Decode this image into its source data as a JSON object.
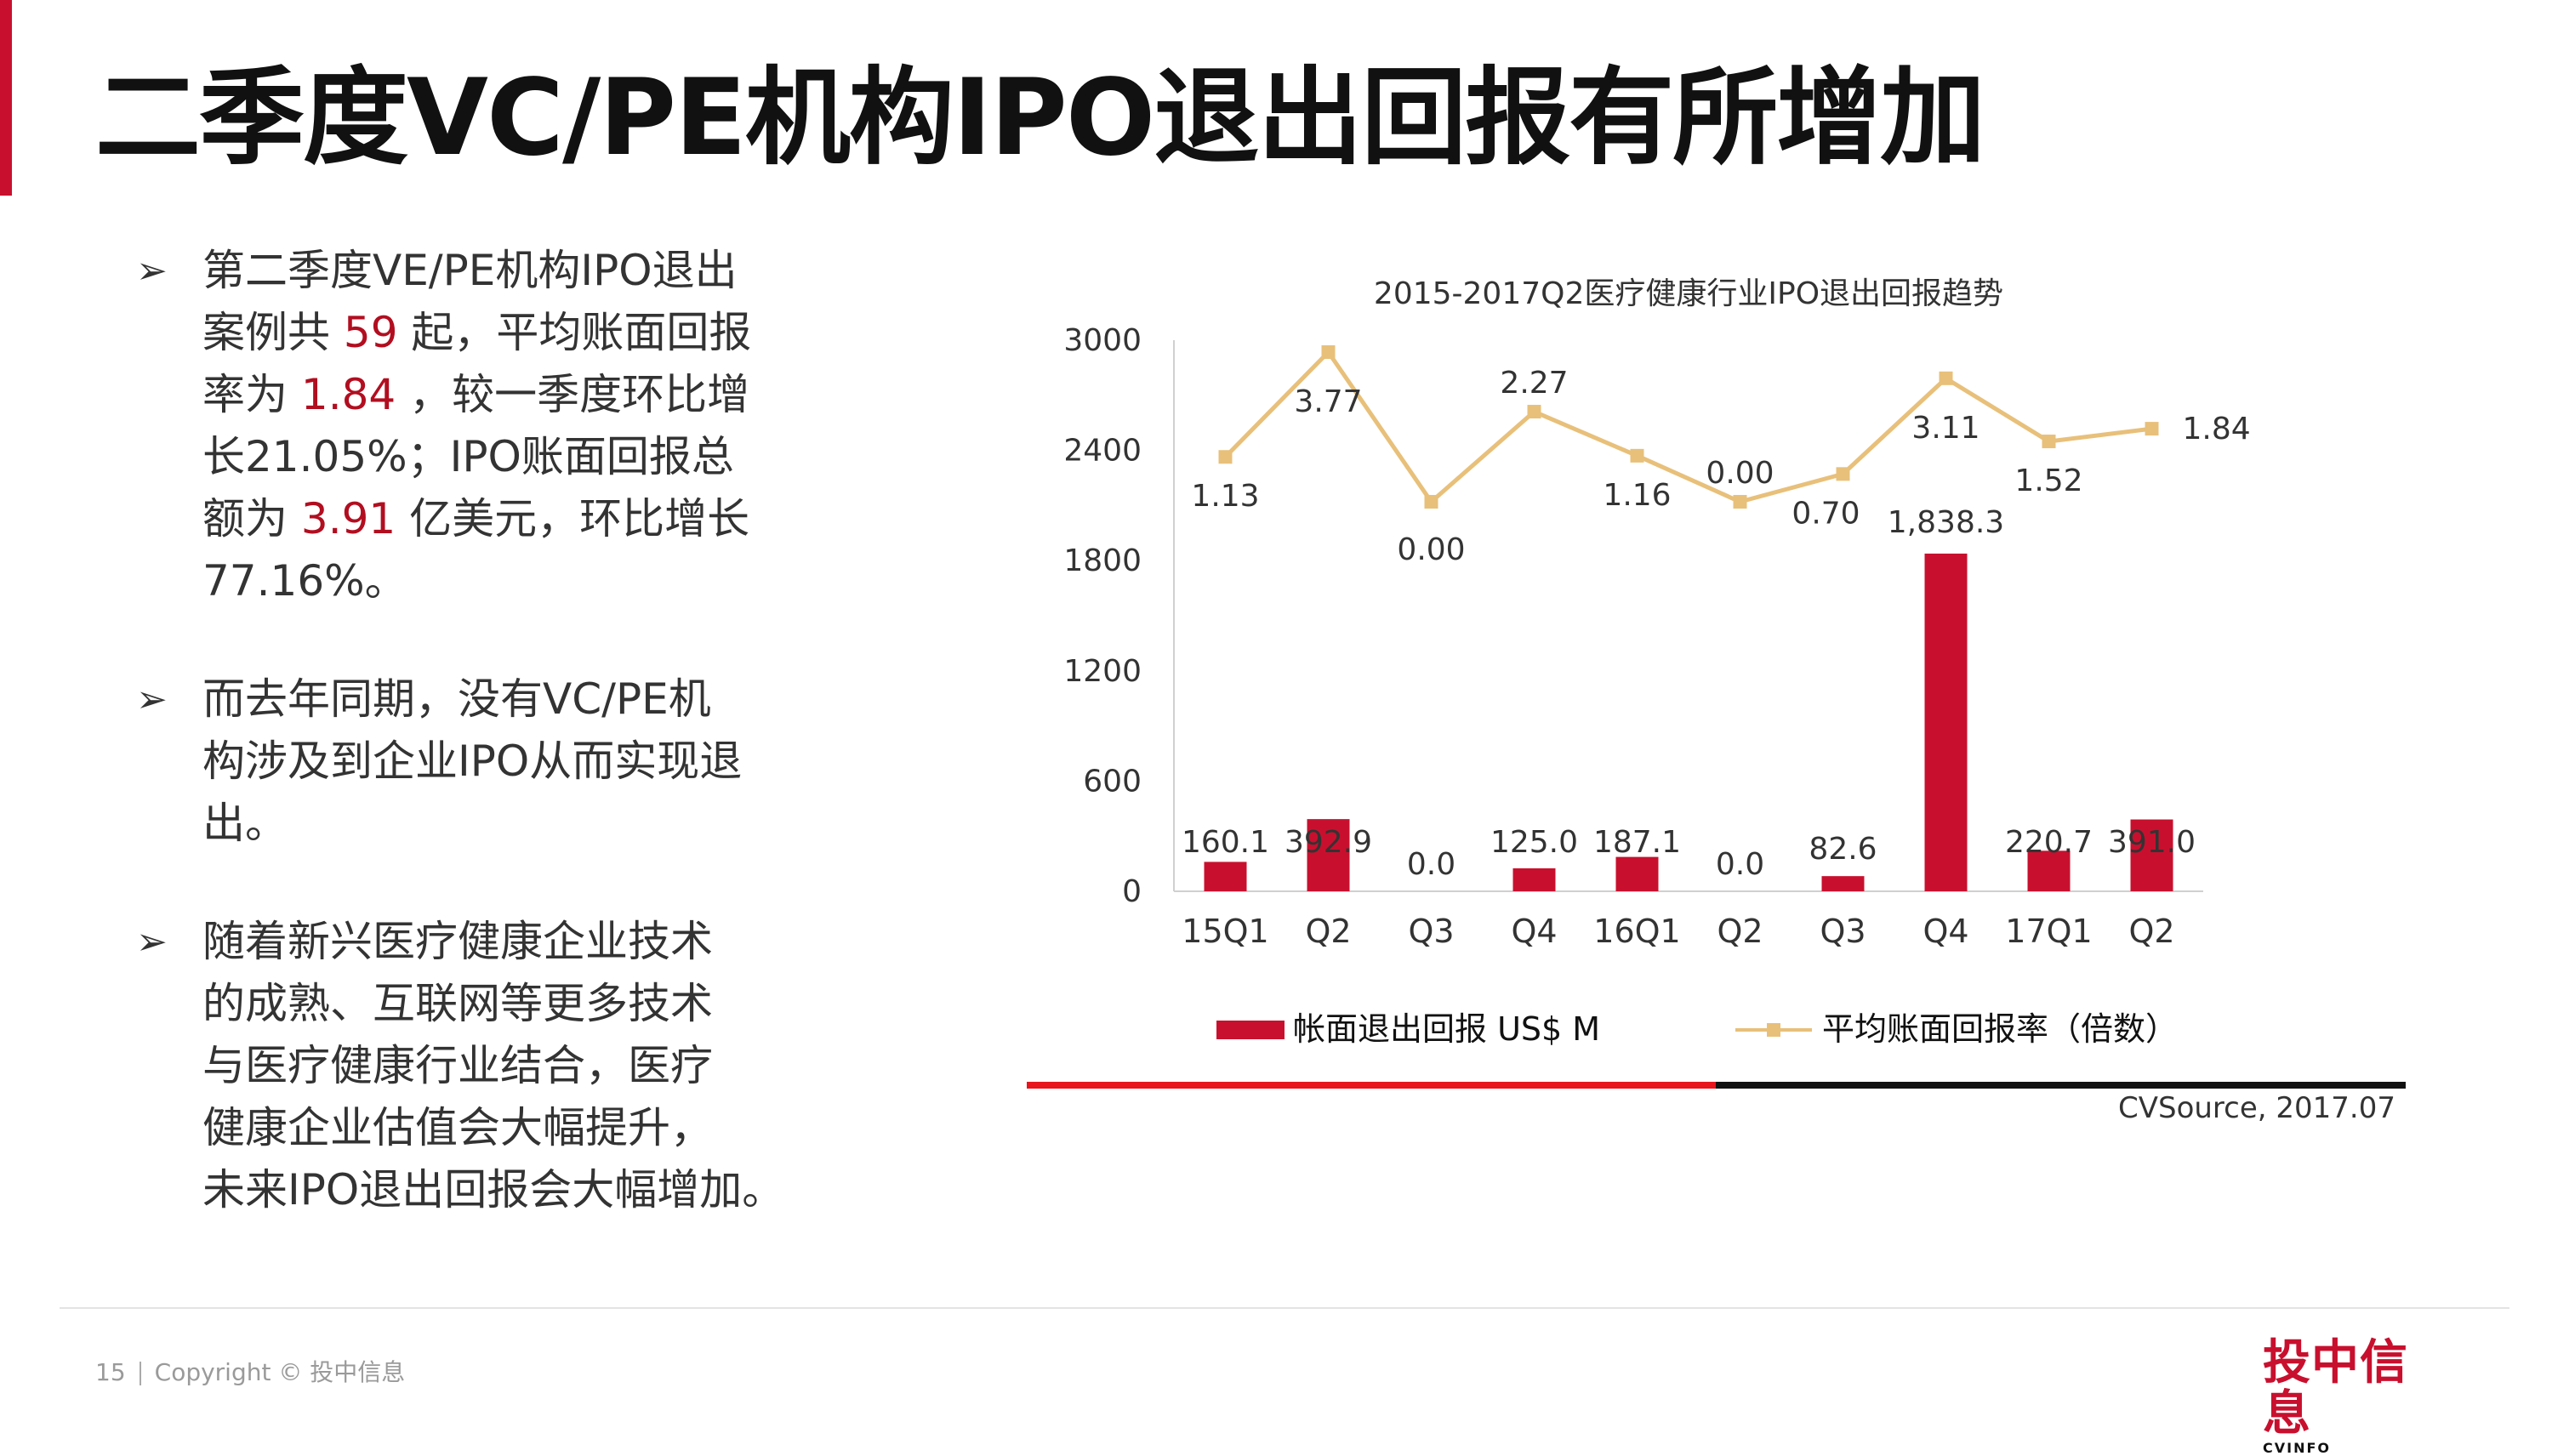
{
  "slide": {
    "title": "二季度VC/PE机构IPO退出回报有所增加",
    "page_number": "15",
    "copyright": "Copyright © 投中信息",
    "logo_cn": "投中信息",
    "logo_en": "CVINFO",
    "source": "CVSource, 2017.07"
  },
  "bullets": [
    {
      "arrow": "➢",
      "text_html": "第二季度VE/PE机构IPO退出\n案例共 <span class=\"hl\">59</span> 起，平均账面回报\n率为 <span class=\"hl\">1.84</span> ，较一季度环比增\n长21.05%；IPO账面回报总\n额为 <span class=\"hl\">3.91</span> 亿美元，环比增长\n77.16%。"
    },
    {
      "arrow": "➢",
      "text_html": "而去年同期，没有VC/PE机\n构涉及到企业IPO从而实现退\n出。"
    },
    {
      "arrow": "➢",
      "text_html": "随着新兴医疗健康企业技术\n的成熟、互联网等更多技术\n与医疗健康行业结合，医疗\n健康企业估值会大幅提升，\n未来IPO退出回报会大幅增加。"
    }
  ],
  "colors": {
    "bar": "#c8102e",
    "line": "#e8c07a",
    "text": "#333333",
    "accent": "#c8102e"
  },
  "chart_data": {
    "type": "bar+line",
    "title": "2015-2017Q2医疗健康行业IPO退出回报趋势",
    "categories": [
      "15Q1",
      "Q2",
      "Q3",
      "Q4",
      "16Q1",
      "Q2",
      "Q3",
      "Q4",
      "17Q1",
      "Q2"
    ],
    "y_ticks": [
      "3000",
      "2400",
      "1800",
      "1200",
      "600",
      "0"
    ],
    "ylim": [
      0,
      3000
    ],
    "series": [
      {
        "name": "帐面退出回报 US$ M",
        "type": "bar",
        "values": [
          160.1,
          392.9,
          0.0,
          125.0,
          187.1,
          0.0,
          82.6,
          1838.3,
          220.7,
          391.0
        ],
        "labels": [
          "160.1",
          "392.9",
          "0.0",
          "125.0",
          "187.1",
          "0.0",
          "82.6",
          "1,838.3",
          "220.7",
          "391.0"
        ]
      },
      {
        "name": "平均账面回报率（倍数）",
        "type": "line",
        "values": [
          1.13,
          3.77,
          0.0,
          2.27,
          1.16,
          0.0,
          0.7,
          3.11,
          1.52,
          1.84
        ],
        "labels": [
          "1.13",
          "3.77",
          "0.00",
          "2.27",
          "1.16",
          "0.00",
          "0.70",
          "3.11",
          "1.52",
          "1.84"
        ]
      }
    ],
    "grid": false,
    "legend_position": "bottom"
  }
}
